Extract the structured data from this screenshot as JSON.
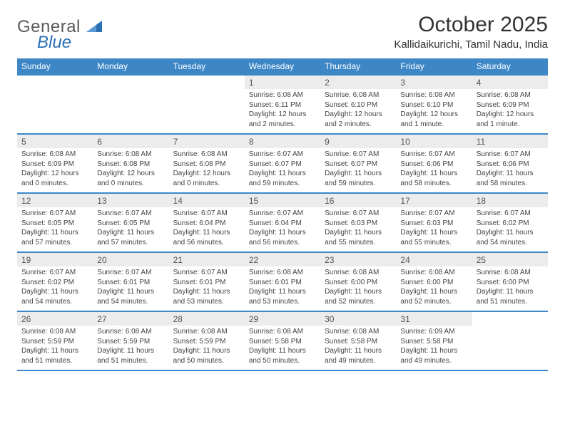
{
  "logo": {
    "text": "General",
    "blue_text": "Blue"
  },
  "title": "October 2025",
  "location": "Kallidaikurichi, Tamil Nadu, India",
  "colors": {
    "header_bg": "#3d87c7",
    "header_text": "#ffffff",
    "daynum_bg": "#ececec",
    "text": "#444444",
    "logo_gray": "#5a5a5a",
    "logo_blue": "#2a6fb5"
  },
  "day_names": [
    "Sunday",
    "Monday",
    "Tuesday",
    "Wednesday",
    "Thursday",
    "Friday",
    "Saturday"
  ],
  "weeks": [
    [
      null,
      null,
      null,
      {
        "n": "1",
        "sr": "Sunrise: 6:08 AM",
        "ss": "Sunset: 6:11 PM",
        "d1": "Daylight: 12 hours",
        "d2": "and 2 minutes."
      },
      {
        "n": "2",
        "sr": "Sunrise: 6:08 AM",
        "ss": "Sunset: 6:10 PM",
        "d1": "Daylight: 12 hours",
        "d2": "and 2 minutes."
      },
      {
        "n": "3",
        "sr": "Sunrise: 6:08 AM",
        "ss": "Sunset: 6:10 PM",
        "d1": "Daylight: 12 hours",
        "d2": "and 1 minute."
      },
      {
        "n": "4",
        "sr": "Sunrise: 6:08 AM",
        "ss": "Sunset: 6:09 PM",
        "d1": "Daylight: 12 hours",
        "d2": "and 1 minute."
      }
    ],
    [
      {
        "n": "5",
        "sr": "Sunrise: 6:08 AM",
        "ss": "Sunset: 6:09 PM",
        "d1": "Daylight: 12 hours",
        "d2": "and 0 minutes."
      },
      {
        "n": "6",
        "sr": "Sunrise: 6:08 AM",
        "ss": "Sunset: 6:08 PM",
        "d1": "Daylight: 12 hours",
        "d2": "and 0 minutes."
      },
      {
        "n": "7",
        "sr": "Sunrise: 6:08 AM",
        "ss": "Sunset: 6:08 PM",
        "d1": "Daylight: 12 hours",
        "d2": "and 0 minutes."
      },
      {
        "n": "8",
        "sr": "Sunrise: 6:07 AM",
        "ss": "Sunset: 6:07 PM",
        "d1": "Daylight: 11 hours",
        "d2": "and 59 minutes."
      },
      {
        "n": "9",
        "sr": "Sunrise: 6:07 AM",
        "ss": "Sunset: 6:07 PM",
        "d1": "Daylight: 11 hours",
        "d2": "and 59 minutes."
      },
      {
        "n": "10",
        "sr": "Sunrise: 6:07 AM",
        "ss": "Sunset: 6:06 PM",
        "d1": "Daylight: 11 hours",
        "d2": "and 58 minutes."
      },
      {
        "n": "11",
        "sr": "Sunrise: 6:07 AM",
        "ss": "Sunset: 6:06 PM",
        "d1": "Daylight: 11 hours",
        "d2": "and 58 minutes."
      }
    ],
    [
      {
        "n": "12",
        "sr": "Sunrise: 6:07 AM",
        "ss": "Sunset: 6:05 PM",
        "d1": "Daylight: 11 hours",
        "d2": "and 57 minutes."
      },
      {
        "n": "13",
        "sr": "Sunrise: 6:07 AM",
        "ss": "Sunset: 6:05 PM",
        "d1": "Daylight: 11 hours",
        "d2": "and 57 minutes."
      },
      {
        "n": "14",
        "sr": "Sunrise: 6:07 AM",
        "ss": "Sunset: 6:04 PM",
        "d1": "Daylight: 11 hours",
        "d2": "and 56 minutes."
      },
      {
        "n": "15",
        "sr": "Sunrise: 6:07 AM",
        "ss": "Sunset: 6:04 PM",
        "d1": "Daylight: 11 hours",
        "d2": "and 56 minutes."
      },
      {
        "n": "16",
        "sr": "Sunrise: 6:07 AM",
        "ss": "Sunset: 6:03 PM",
        "d1": "Daylight: 11 hours",
        "d2": "and 55 minutes."
      },
      {
        "n": "17",
        "sr": "Sunrise: 6:07 AM",
        "ss": "Sunset: 6:03 PM",
        "d1": "Daylight: 11 hours",
        "d2": "and 55 minutes."
      },
      {
        "n": "18",
        "sr": "Sunrise: 6:07 AM",
        "ss": "Sunset: 6:02 PM",
        "d1": "Daylight: 11 hours",
        "d2": "and 54 minutes."
      }
    ],
    [
      {
        "n": "19",
        "sr": "Sunrise: 6:07 AM",
        "ss": "Sunset: 6:02 PM",
        "d1": "Daylight: 11 hours",
        "d2": "and 54 minutes."
      },
      {
        "n": "20",
        "sr": "Sunrise: 6:07 AM",
        "ss": "Sunset: 6:01 PM",
        "d1": "Daylight: 11 hours",
        "d2": "and 54 minutes."
      },
      {
        "n": "21",
        "sr": "Sunrise: 6:07 AM",
        "ss": "Sunset: 6:01 PM",
        "d1": "Daylight: 11 hours",
        "d2": "and 53 minutes."
      },
      {
        "n": "22",
        "sr": "Sunrise: 6:08 AM",
        "ss": "Sunset: 6:01 PM",
        "d1": "Daylight: 11 hours",
        "d2": "and 53 minutes."
      },
      {
        "n": "23",
        "sr": "Sunrise: 6:08 AM",
        "ss": "Sunset: 6:00 PM",
        "d1": "Daylight: 11 hours",
        "d2": "and 52 minutes."
      },
      {
        "n": "24",
        "sr": "Sunrise: 6:08 AM",
        "ss": "Sunset: 6:00 PM",
        "d1": "Daylight: 11 hours",
        "d2": "and 52 minutes."
      },
      {
        "n": "25",
        "sr": "Sunrise: 6:08 AM",
        "ss": "Sunset: 6:00 PM",
        "d1": "Daylight: 11 hours",
        "d2": "and 51 minutes."
      }
    ],
    [
      {
        "n": "26",
        "sr": "Sunrise: 6:08 AM",
        "ss": "Sunset: 5:59 PM",
        "d1": "Daylight: 11 hours",
        "d2": "and 51 minutes."
      },
      {
        "n": "27",
        "sr": "Sunrise: 6:08 AM",
        "ss": "Sunset: 5:59 PM",
        "d1": "Daylight: 11 hours",
        "d2": "and 51 minutes."
      },
      {
        "n": "28",
        "sr": "Sunrise: 6:08 AM",
        "ss": "Sunset: 5:59 PM",
        "d1": "Daylight: 11 hours",
        "d2": "and 50 minutes."
      },
      {
        "n": "29",
        "sr": "Sunrise: 6:08 AM",
        "ss": "Sunset: 5:58 PM",
        "d1": "Daylight: 11 hours",
        "d2": "and 50 minutes."
      },
      {
        "n": "30",
        "sr": "Sunrise: 6:08 AM",
        "ss": "Sunset: 5:58 PM",
        "d1": "Daylight: 11 hours",
        "d2": "and 49 minutes."
      },
      {
        "n": "31",
        "sr": "Sunrise: 6:09 AM",
        "ss": "Sunset: 5:58 PM",
        "d1": "Daylight: 11 hours",
        "d2": "and 49 minutes."
      },
      null
    ]
  ]
}
